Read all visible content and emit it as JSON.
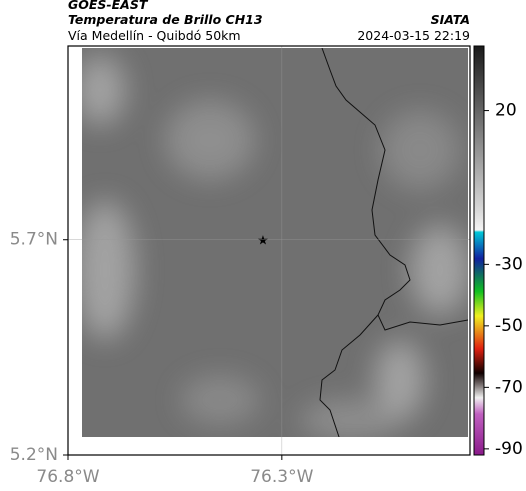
{
  "header": {
    "title": "GOES-EAST",
    "subtitle": "Temperatura de Brillo CH13",
    "source": "SIATA",
    "route": "Vía Medellín - Quibdó 50km",
    "timestamp": "2024-03-15 22:19"
  },
  "map": {
    "latlim": [
      5.2,
      6.15
    ],
    "lonlim": [
      -76.8,
      -75.86
    ],
    "yticks": [
      {
        "value": 5.7,
        "label": "5.7°N"
      },
      {
        "value": 5.2,
        "label": "5.2°N"
      }
    ],
    "xticks": [
      {
        "value": -76.8,
        "label": "76.8°W"
      },
      {
        "value": -76.3,
        "label": "76.3°W"
      }
    ]
  },
  "colorbar": {
    "lim": [
      -92,
      41
    ],
    "ticks": [
      20,
      -30,
      -50,
      -70,
      -90
    ]
  }
}
